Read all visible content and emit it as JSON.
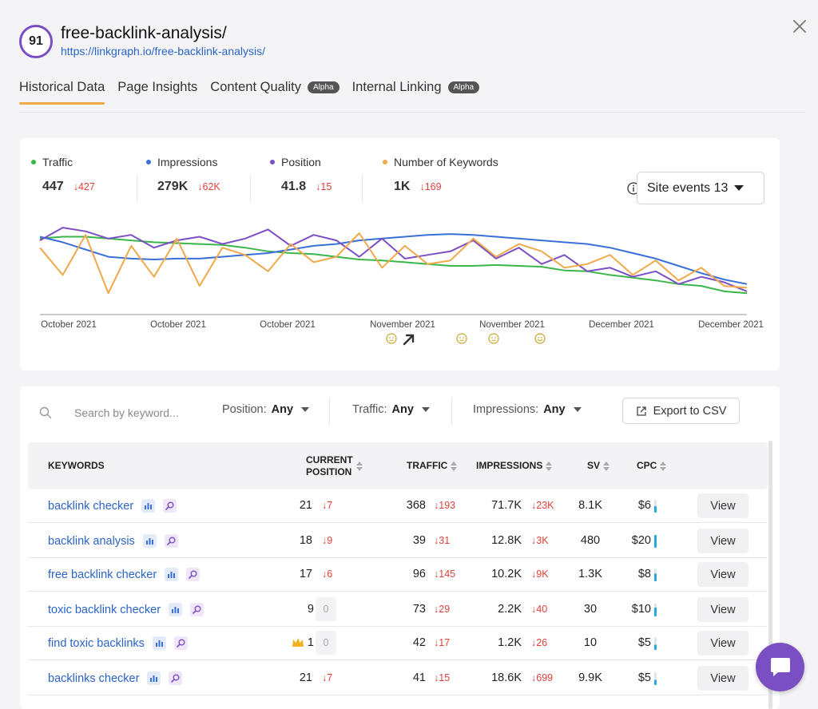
{
  "header": {
    "score": "91",
    "title": "free-backlink-analysis/",
    "url": "https://linkgraph.io/free-backlink-analysis/"
  },
  "tabs": [
    {
      "label": "Historical Data",
      "active": true,
      "badge": ""
    },
    {
      "label": "Page Insights",
      "active": false,
      "badge": ""
    },
    {
      "label": "Content Quality",
      "active": false,
      "badge": "Alpha"
    },
    {
      "label": "Internal Linking",
      "active": false,
      "badge": "Alpha"
    }
  ],
  "metrics": [
    {
      "label": "Traffic",
      "value": "447",
      "delta": "↓427",
      "color": "#3cb54a"
    },
    {
      "label": "Impressions",
      "value": "279K",
      "delta": "↓62K",
      "color": "#3a6fd8"
    },
    {
      "label": "Position",
      "value": "41.8",
      "delta": "↓15",
      "color": "#7b4fc4"
    },
    {
      "label": "Number of Keywords",
      "value": "1K",
      "delta": "↓169",
      "color": "#f0a94a"
    }
  ],
  "site_events": {
    "label": "Site events 13"
  },
  "chart_data": {
    "type": "line",
    "x_labels": [
      "October 2021",
      "October 2021",
      "October 2021",
      "November 2021",
      "November 2021",
      "December 2021",
      "December 2021"
    ],
    "y_axis": "hidden",
    "series": [
      {
        "name": "Traffic",
        "color": "#3cb54a",
        "values": [
          80,
          82,
          82,
          80,
          78,
          76,
          75,
          74,
          73,
          70,
          66,
          64,
          63,
          60,
          57,
          56,
          54,
          52,
          50,
          50,
          51,
          50,
          49,
          45,
          44,
          40,
          37,
          34,
          30,
          28,
          22,
          20
        ]
      },
      {
        "name": "Impressions",
        "color": "#3a6fd8",
        "values": [
          82,
          76,
          68,
          60,
          58,
          57,
          58,
          58,
          60,
          62,
          64,
          68,
          72,
          74,
          78,
          80,
          82,
          84,
          85,
          84,
          82,
          80,
          78,
          76,
          74,
          70,
          64,
          58,
          50,
          42,
          35,
          30
        ]
      },
      {
        "name": "Position",
        "color": "#7b4fc4",
        "values": [
          78,
          92,
          88,
          80,
          84,
          70,
          78,
          82,
          74,
          80,
          90,
          72,
          84,
          78,
          60,
          80,
          58,
          62,
          66,
          78,
          58,
          70,
          52,
          62,
          44,
          48,
          38,
          44,
          30,
          38,
          32,
          22
        ]
      },
      {
        "name": "Number of Keywords",
        "color": "#f0a94a",
        "values": [
          70,
          40,
          84,
          20,
          72,
          38,
          80,
          28,
          70,
          62,
          44,
          74,
          54,
          60,
          86,
          48,
          72,
          52,
          56,
          80,
          60,
          74,
          66,
          48,
          52,
          62,
          40,
          56,
          34,
          48,
          28,
          26
        ]
      }
    ],
    "events": [
      "neutral",
      "arrow",
      "neutral",
      "neutral",
      "happy"
    ]
  },
  "filters": {
    "search_placeholder": "Search by keyword...",
    "position_label": "Position:",
    "position_value": "Any",
    "traffic_label": "Traffic:",
    "traffic_value": "Any",
    "impressions_label": "Impressions:",
    "impressions_value": "Any",
    "export_label": "Export to CSV"
  },
  "table": {
    "headers": {
      "keywords": "KEYWORDS",
      "position_line1": "CURRENT",
      "position_line2": "POSITION",
      "traffic": "TRAFFIC",
      "impressions": "IMPRESSIONS",
      "sv": "SV",
      "cpc": "CPC"
    },
    "view_label": "View",
    "rows": [
      {
        "keyword": "backlink checker",
        "position": "21",
        "position_delta": "↓7",
        "position_zero": false,
        "crown": false,
        "traffic": "368",
        "traffic_delta": "↓193",
        "impressions": "71.7K",
        "impressions_delta": "↓23K",
        "sv": "8.1K",
        "cpc": "$6",
        "cpc_level": 0.5
      },
      {
        "keyword": "backlink analysis",
        "position": "18",
        "position_delta": "↓9",
        "position_zero": false,
        "crown": false,
        "traffic": "39",
        "traffic_delta": "↓31",
        "impressions": "12.8K",
        "impressions_delta": "↓3K",
        "sv": "480",
        "cpc": "$20",
        "cpc_level": 1.0
      },
      {
        "keyword": "free backlink checker",
        "position": "17",
        "position_delta": "↓6",
        "position_zero": false,
        "crown": false,
        "traffic": "96",
        "traffic_delta": "↓145",
        "impressions": "10.2K",
        "impressions_delta": "↓9K",
        "sv": "1.3K",
        "cpc": "$8",
        "cpc_level": 0.6
      },
      {
        "keyword": "toxic backlink checker",
        "position": "9",
        "position_delta": "0",
        "position_zero": true,
        "crown": false,
        "traffic": "73",
        "traffic_delta": "↓29",
        "impressions": "2.2K",
        "impressions_delta": "↓40",
        "sv": "30",
        "cpc": "$10",
        "cpc_level": 0.7
      },
      {
        "keyword": "find toxic backlinks",
        "position": "1",
        "position_delta": "0",
        "position_zero": true,
        "crown": true,
        "traffic": "42",
        "traffic_delta": "↓17",
        "impressions": "1.2K",
        "impressions_delta": "↓26",
        "sv": "10",
        "cpc": "$5",
        "cpc_level": 0.4
      },
      {
        "keyword": "backlinks checker",
        "position": "21",
        "position_delta": "↓7",
        "position_zero": false,
        "crown": false,
        "traffic": "41",
        "traffic_delta": "↓15",
        "impressions": "18.6K",
        "impressions_delta": "↓699",
        "sv": "9.9K",
        "cpc": "$5",
        "cpc_level": 0.4
      }
    ]
  }
}
